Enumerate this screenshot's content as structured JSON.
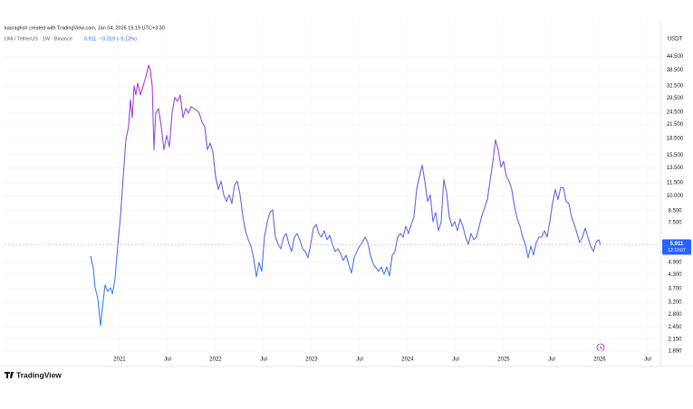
{
  "chart_data": {
    "type": "line",
    "attribution": "kasraghsh created with TradingView.com, Jan 04, 2026 15:19 UTC+3:30",
    "change": "−0.319 (−5.12%)",
    "last_price": 5.911,
    "countdown": "12:10:07",
    "currency": "USDT",
    "brand": "TradingView",
    "log_scale": true,
    "grid": true,
    "xlim": [
      2019.802,
      2026.623
    ],
    "ylim": [
      1.765,
      56.5
    ],
    "xticks": [
      {
        "value": 2021,
        "label": "2021"
      },
      {
        "value": 2021.5,
        "label": "Jul"
      },
      {
        "value": 2022,
        "label": "2022"
      },
      {
        "value": 2022.5,
        "label": "Jul"
      },
      {
        "value": 2023,
        "label": "2023"
      },
      {
        "value": 2023.5,
        "label": "Jul"
      },
      {
        "value": 2024,
        "label": "2024"
      },
      {
        "value": 2024.5,
        "label": "Jul"
      },
      {
        "value": 2025,
        "label": "2025"
      },
      {
        "value": 2025.5,
        "label": "Jul"
      },
      {
        "value": 2026,
        "label": "2026"
      },
      {
        "value": 2026.5,
        "label": "Jul"
      }
    ],
    "yticks": [
      {
        "value": 44.5,
        "label": "44.500"
      },
      {
        "value": 38.5,
        "label": "38.500"
      },
      {
        "value": 32.5,
        "label": "32.500"
      },
      {
        "value": 28.5,
        "label": "28.500"
      },
      {
        "value": 24.5,
        "label": "24.500"
      },
      {
        "value": 21.5,
        "label": "21.500"
      },
      {
        "value": 18.5,
        "label": "18.500"
      },
      {
        "value": 15.5,
        "label": "15.500"
      },
      {
        "value": 13.5,
        "label": "13.500"
      },
      {
        "value": 11.5,
        "label": "11.500"
      },
      {
        "value": 10,
        "label": "10.000"
      },
      {
        "value": 8.5,
        "label": "8.500"
      },
      {
        "value": 7.5,
        "label": "7.500"
      },
      {
        "value": 4.9,
        "label": "4.900"
      },
      {
        "value": 4.3,
        "label": "4.300"
      },
      {
        "value": 3.7,
        "label": "3.700"
      },
      {
        "value": 3.2,
        "label": "3.200"
      },
      {
        "value": 2.8,
        "label": "2.800"
      },
      {
        "value": 2.45,
        "label": "2.450"
      },
      {
        "value": 2.15,
        "label": "2.150"
      },
      {
        "value": 1.89,
        "label": "1.890"
      }
    ],
    "x": [
      2020.698,
      2020.726,
      2020.745,
      2020.774,
      2020.802,
      2020.821,
      2020.849,
      2020.877,
      2020.906,
      2020.925,
      2020.953,
      2020.981,
      2021.009,
      2021.038,
      2021.066,
      2021.094,
      2021.113,
      2021.132,
      2021.151,
      2021.17,
      2021.189,
      2021.217,
      2021.245,
      2021.274,
      2021.302,
      2021.321,
      2021.34,
      2021.358,
      2021.377,
      2021.406,
      2021.434,
      2021.462,
      2021.491,
      2021.519,
      2021.547,
      2021.575,
      2021.604,
      2021.632,
      2021.66,
      2021.689,
      2021.717,
      2021.745,
      2021.774,
      2021.802,
      2021.83,
      2021.858,
      2021.887,
      2021.915,
      2021.943,
      2021.972,
      2022.0,
      2022.028,
      2022.057,
      2022.085,
      2022.113,
      2022.142,
      2022.17,
      2022.198,
      2022.226,
      2022.255,
      2022.283,
      2022.311,
      2022.34,
      2022.368,
      2022.396,
      2022.425,
      2022.453,
      2022.481,
      2022.509,
      2022.538,
      2022.566,
      2022.594,
      2022.623,
      2022.651,
      2022.679,
      2022.708,
      2022.736,
      2022.764,
      2022.792,
      2022.821,
      2022.849,
      2022.877,
      2022.906,
      2022.934,
      2022.962,
      2022.991,
      2023.019,
      2023.047,
      2023.075,
      2023.104,
      2023.132,
      2023.16,
      2023.189,
      2023.217,
      2023.245,
      2023.274,
      2023.302,
      2023.33,
      2023.358,
      2023.387,
      2023.415,
      2023.443,
      2023.472,
      2023.5,
      2023.528,
      2023.557,
      2023.585,
      2023.613,
      2023.642,
      2023.67,
      2023.698,
      2023.726,
      2023.755,
      2023.783,
      2023.811,
      2023.84,
      2023.868,
      2023.896,
      2023.925,
      2023.953,
      2023.981,
      2024.009,
      2024.038,
      2024.066,
      2024.094,
      2024.123,
      2024.151,
      2024.179,
      2024.208,
      2024.236,
      2024.264,
      2024.292,
      2024.321,
      2024.349,
      2024.377,
      2024.406,
      2024.434,
      2024.462,
      2024.491,
      2024.519,
      2024.547,
      2024.575,
      2024.604,
      2024.632,
      2024.66,
      2024.689,
      2024.717,
      2024.745,
      2024.774,
      2024.802,
      2024.83,
      2024.858,
      2024.887,
      2024.915,
      2024.943,
      2024.972,
      2025.0,
      2025.028,
      2025.057,
      2025.085,
      2025.113,
      2025.142,
      2025.17,
      2025.198,
      2025.226,
      2025.255,
      2025.283,
      2025.311,
      2025.34,
      2025.368,
      2025.396,
      2025.425,
      2025.453,
      2025.481,
      2025.509,
      2025.538,
      2025.566,
      2025.594,
      2025.623,
      2025.651,
      2025.679,
      2025.708,
      2025.736,
      2025.764,
      2025.792,
      2025.821,
      2025.849,
      2025.877,
      2025.906,
      2025.934,
      2025.962,
      2025.991,
      2026.009
    ],
    "series": [
      {
        "name": "UNI / TetherUS · 1W · Binance",
        "colors": [
          "#b83ad8",
          "#2f90e8"
        ],
        "values": [
          5.24,
          4.62,
          3.73,
          3.32,
          2.48,
          3.01,
          3.84,
          3.58,
          3.73,
          3.49,
          4.11,
          5.83,
          7.95,
          12.3,
          18.2,
          21.0,
          28.0,
          23.1,
          32.5,
          29.5,
          33.5,
          29.5,
          32.5,
          35.8,
          40.6,
          38.3,
          32.5,
          16.4,
          24.3,
          25.5,
          21.0,
          16.4,
          19.1,
          16.9,
          24.3,
          28.7,
          27.6,
          29.5,
          23.1,
          25.5,
          24.3,
          26.0,
          25.5,
          25.0,
          24.3,
          22.0,
          21.0,
          16.4,
          17.6,
          16.0,
          12.3,
          10.7,
          11.7,
          10.1,
          9.4,
          10.1,
          9.2,
          11.2,
          11.7,
          10.1,
          8.1,
          6.87,
          6.24,
          5.83,
          5.14,
          4.19,
          4.89,
          4.44,
          6.42,
          7.57,
          8.36,
          8.6,
          6.42,
          5.94,
          5.66,
          6.42,
          6.67,
          5.94,
          5.5,
          6.42,
          6.67,
          6.24,
          5.66,
          5.5,
          5.14,
          5.94,
          7.07,
          7.36,
          6.67,
          6.42,
          6.87,
          6.24,
          6.55,
          5.94,
          5.5,
          5.66,
          5.39,
          4.99,
          5.29,
          4.8,
          4.36,
          5.14,
          5.5,
          5.83,
          6.06,
          6.42,
          6.06,
          5.29,
          4.8,
          4.62,
          4.44,
          4.66,
          4.31,
          4.66,
          4.23,
          5.29,
          5.5,
          6.42,
          6.67,
          6.42,
          7.21,
          6.67,
          7.36,
          7.95,
          10.7,
          12.3,
          13.9,
          11.7,
          9.4,
          10.1,
          7.57,
          8.36,
          6.87,
          7.57,
          11.9,
          10.4,
          7.95,
          7.21,
          7.57,
          6.87,
          7.8,
          7.21,
          6.42,
          5.94,
          6.67,
          6.24,
          6.42,
          7.21,
          8.1,
          8.8,
          9.6,
          11.7,
          14.3,
          18.2,
          16.4,
          13.6,
          14.5,
          12.3,
          11.7,
          10.7,
          8.9,
          7.8,
          7.21,
          6.42,
          5.94,
          5.14,
          5.83,
          5.29,
          6.06,
          6.42,
          6.42,
          6.87,
          6.42,
          7.57,
          9.2,
          10.7,
          9.6,
          10.9,
          10.9,
          9.4,
          9.2,
          7.95,
          7.36,
          6.67,
          6.06,
          6.42,
          7.07,
          6.42,
          5.83,
          5.5,
          6.06,
          6.24,
          5.911
        ]
      }
    ]
  }
}
